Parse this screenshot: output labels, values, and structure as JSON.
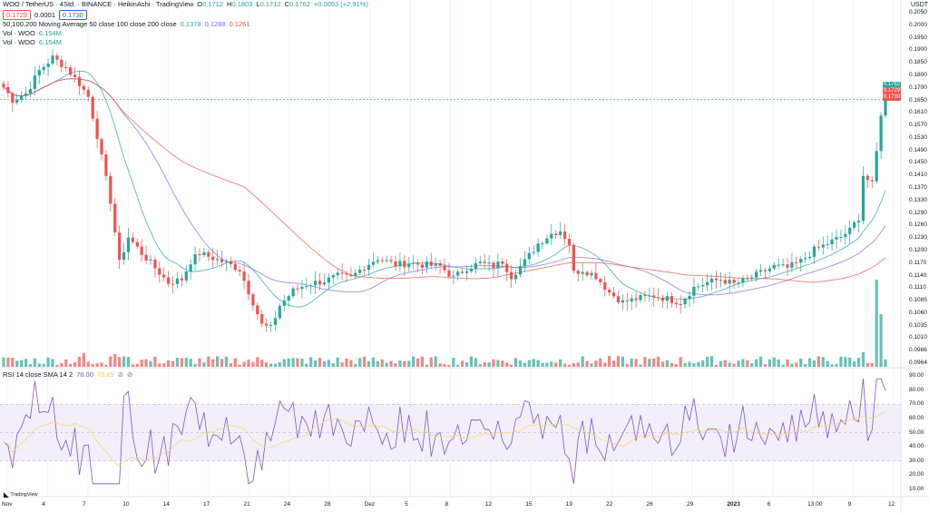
{
  "header": {
    "symbol": "WOO / TetherUS · 4Std. · BINANCE · HeikinAshi · TradingView",
    "ohlc": {
      "o_label": "O",
      "o": "0.1712",
      "h_label": "H",
      "h": "0.1803",
      "l_label": "L",
      "l": "0.1712",
      "c_label": "C",
      "c": "0.1762",
      "change": "+0.0053 (+2.91%)"
    },
    "bid": "0.1729",
    "spread": "0.0001",
    "ask": "0.1730",
    "ma_label": "50,100,200 Moving Average 50 close 100 close 200 close",
    "ma_values": [
      "0.1378",
      "0.1288",
      "0.1261"
    ],
    "ma_colors": [
      "#26a69a",
      "#7b68ee",
      "#ef5350"
    ],
    "vol1_label": "Vol · WOO",
    "vol1_value": "6.154M",
    "vol2_label": "Vol · WOO",
    "vol2_value": "6.154M"
  },
  "rsi": {
    "label": "RSI 14 close SMA 14 2",
    "value1": "78.00",
    "value2": "76.65"
  },
  "currency": "USDT",
  "price_axis": [
    "0.2050",
    "0.2000",
    "0.1950",
    "0.1900",
    "0.1850",
    "0.1800",
    "0.1700",
    "0.1650",
    "0.1610",
    "0.1570",
    "0.1530",
    "0.1490",
    "0.1450",
    "0.1410",
    "0.1370",
    "0.1330",
    "0.1290",
    "0.1260",
    "0.1230",
    "0.1200",
    "0.1170",
    "0.1140",
    "0.1110",
    "0.1085",
    "0.1060",
    "0.1035",
    "0.1010",
    "0.0986",
    "0.0964"
  ],
  "price_tags": [
    "0.1762",
    "0.1729",
    "0.1730"
  ],
  "rsi_axis": [
    "90.00",
    "80.00",
    "70.00",
    "60.00",
    "50.00",
    "40.00",
    "30.00",
    "20.00",
    "10.00"
  ],
  "time_axis": [
    "Nov",
    "4",
    "7",
    "10",
    "14",
    "17",
    "21",
    "24",
    "28",
    "Dez",
    "5",
    "8",
    "12",
    "15",
    "19",
    "22",
    "26",
    "29",
    "2023",
    "6",
    "13:00",
    "9",
    "12"
  ],
  "logo_text": "TradingView",
  "chart_data": {
    "type": "candlestick",
    "series_type": "HeikinAshi",
    "x_labels": [
      "Nov",
      "4",
      "7",
      "10",
      "14",
      "17",
      "21",
      "24",
      "28",
      "Dez",
      "5",
      "8",
      "12",
      "15",
      "19",
      "22",
      "26",
      "29",
      "2023",
      "6",
      "13:00",
      "9",
      "12"
    ],
    "price_keypoints": [
      [
        0,
        0.18
      ],
      [
        2,
        0.176
      ],
      [
        5,
        0.178
      ],
      [
        8,
        0.185
      ],
      [
        11,
        0.189
      ],
      [
        14,
        0.186
      ],
      [
        17,
        0.181
      ],
      [
        19,
        0.177
      ],
      [
        21,
        0.165
      ],
      [
        24,
        0.145
      ],
      [
        26,
        0.126
      ],
      [
        28,
        0.134
      ],
      [
        31,
        0.129
      ],
      [
        34,
        0.1245
      ],
      [
        37,
        0.12
      ],
      [
        40,
        0.121
      ],
      [
        42,
        0.1265
      ],
      [
        44,
        0.129
      ],
      [
        47,
        0.1275
      ],
      [
        50,
        0.126
      ],
      [
        53,
        0.124
      ],
      [
        56,
        0.114
      ],
      [
        58,
        0.107
      ],
      [
        60,
        0.106
      ],
      [
        62,
        0.113
      ],
      [
        65,
        0.1175
      ],
      [
        68,
        0.1195
      ],
      [
        72,
        0.1205
      ],
      [
        75,
        0.122
      ],
      [
        78,
        0.1215
      ],
      [
        81,
        0.125
      ],
      [
        84,
        0.1275
      ],
      [
        88,
        0.1255
      ],
      [
        91,
        0.126
      ],
      [
        94,
        0.1255
      ],
      [
        98,
        0.125
      ],
      [
        101,
        0.1215
      ],
      [
        104,
        0.1245
      ],
      [
        107,
        0.126
      ],
      [
        110,
        0.125
      ],
      [
        112,
        0.1265
      ],
      [
        114,
        0.122
      ],
      [
        117,
        0.1265
      ],
      [
        120,
        0.132
      ],
      [
        123,
        0.135
      ],
      [
        125,
        0.136
      ],
      [
        127,
        0.132
      ],
      [
        128,
        0.123
      ],
      [
        130,
        0.124
      ],
      [
        133,
        0.122
      ],
      [
        136,
        0.117
      ],
      [
        139,
        0.114
      ],
      [
        142,
        0.115
      ],
      [
        146,
        0.116
      ],
      [
        149,
        0.115
      ],
      [
        152,
        0.114
      ],
      [
        155,
        0.1185
      ],
      [
        158,
        0.12
      ],
      [
        161,
        0.121
      ],
      [
        164,
        0.1195
      ],
      [
        167,
        0.121
      ],
      [
        170,
        0.123
      ],
      [
        173,
        0.125
      ],
      [
        176,
        0.1245
      ],
      [
        179,
        0.1265
      ],
      [
        182,
        0.13
      ],
      [
        185,
        0.132
      ],
      [
        188,
        0.134
      ],
      [
        190,
        0.136
      ],
      [
        192,
        0.14
      ],
      [
        193,
        0.153
      ],
      [
        195,
        0.15
      ],
      [
        196,
        0.16
      ],
      [
        197,
        0.172
      ],
      [
        198,
        0.1762
      ]
    ],
    "count": 199,
    "moving_averages": [
      {
        "name": "MA 50",
        "value": 0.1378,
        "color": "#26a69a"
      },
      {
        "name": "MA 100",
        "value": 0.1288,
        "color": "#7b68ee"
      },
      {
        "name": "MA 200",
        "value": 0.1261,
        "color": "#ef5350"
      }
    ],
    "price_range": [
      0.0964,
      0.205
    ],
    "volume_last": "6.154M",
    "rsi_range": [
      10,
      90
    ],
    "rsi_bands": [
      30,
      70
    ]
  },
  "colors": {
    "up": "#26a69a",
    "down": "#ef5350",
    "rsi": "#7e57c2",
    "rsi_ma": "#f7d774",
    "band": "#f3effa"
  }
}
